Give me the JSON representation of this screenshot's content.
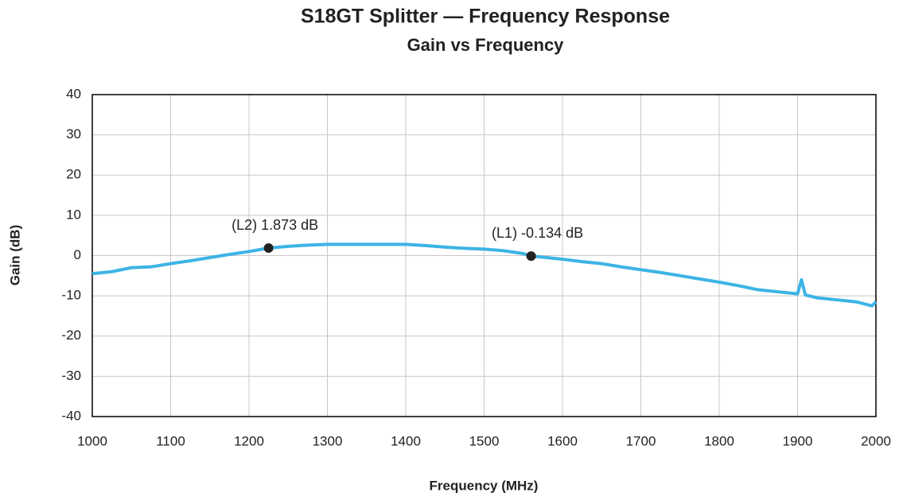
{
  "chart_data": {
    "type": "line",
    "title": "S18GT Splitter — Frequency Response",
    "subtitle": "Gain vs Frequency",
    "x_label": "Frequency (MHz)",
    "y_label": "Gain (dB)",
    "x": [
      1000,
      1025,
      1050,
      1075,
      1100,
      1125,
      1150,
      1175,
      1200,
      1225,
      1250,
      1275,
      1300,
      1350,
      1400,
      1425,
      1450,
      1475,
      1500,
      1525,
      1550,
      1560,
      1575,
      1600,
      1625,
      1650,
      1675,
      1700,
      1725,
      1750,
      1775,
      1800,
      1825,
      1850,
      1875,
      1900,
      1905,
      1910,
      1925,
      1950,
      1975,
      1995,
      2000
    ],
    "series": [
      {
        "name": "Gain",
        "color": "#3cb4e5",
        "values": [
          -4.5,
          -4,
          -3,
          -2.8,
          -2,
          -1.3,
          -0.5,
          0.3,
          1,
          1.873,
          2.3,
          2.6,
          2.8,
          2.8,
          2.8,
          2.5,
          2.1,
          1.8,
          1.6,
          1.2,
          0.5,
          -0.134,
          -0.4,
          -0.9,
          -1.5,
          -2,
          -2.8,
          -3.5,
          -4.2,
          -5,
          -5.8,
          -6.6,
          -7.5,
          -8.5,
          -9,
          -9.5,
          -6,
          -9.8,
          -10.5,
          -11,
          -11.5,
          -12.5,
          -11.5
        ]
      }
    ],
    "markers": [
      {
        "label": "(L2) 1.873 dB",
        "x": 1225,
        "y": 1.873
      },
      {
        "label": "(L1) -0.134 dB",
        "x": 1560,
        "y": -0.134
      }
    ],
    "xlim": [
      1000,
      2000
    ],
    "xticks": [
      1000,
      1100,
      1200,
      1300,
      1400,
      1500,
      1600,
      1700,
      1800,
      1900,
      2000
    ],
    "ylim": [
      -40,
      40
    ],
    "yticks": [
      -40,
      -30,
      -20,
      -10,
      0,
      10,
      20,
      30,
      40
    ],
    "grid": true
  }
}
